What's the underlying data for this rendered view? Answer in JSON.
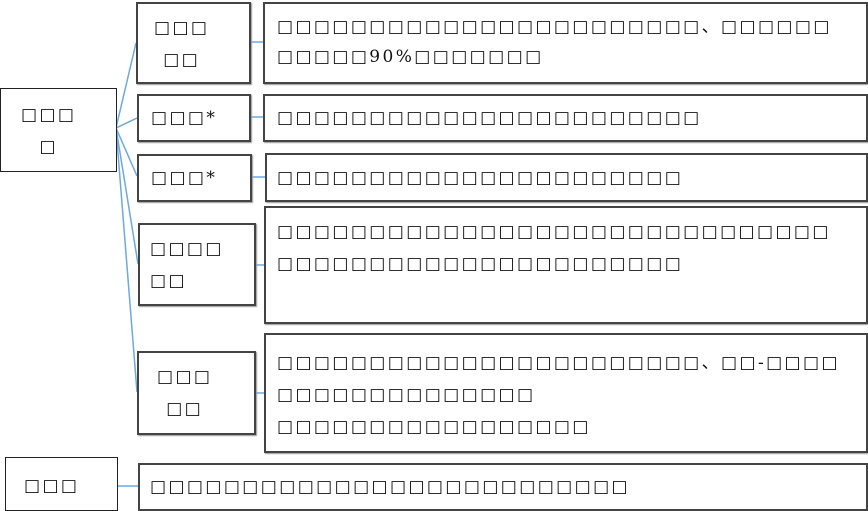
{
  "root": {
    "label": "□□□\n□"
  },
  "branches": [
    {
      "label": "□□□\n□□",
      "detail": "□□□□□□□□□□□□□□□□□□□□□□□、□□□□□□\n□□□□□90%□□□□□□□"
    },
    {
      "label": "□□□*",
      "detail": "□□□□□□□□□□□□□□□□□□□□□□□"
    },
    {
      "label": "□□□*",
      "detail": "□□□□□□□□□□□□□□□□□□□□□□"
    },
    {
      "label": "□□□□\n□□",
      "detail": "□□□□□□□□□□□□□□□□□□□□□□□□□□□□□□\n□□□□□□□□□□□□□□□□□□□□□□"
    },
    {
      "label": "□□□\n□□",
      "detail": "□□□□□□□□□□□□□□□□□□□□□□□、□□-□□□□\n□□□□□□□□□□□□□□\n□□□□□□□□□□□□□□□□□"
    }
  ],
  "footer": {
    "label": "□□□",
    "detail": "□□□□□□□□□□□□□□□□□□□□□□□□□□"
  },
  "colors": {
    "connector": "#6fa8dc",
    "border": "#444444"
  }
}
